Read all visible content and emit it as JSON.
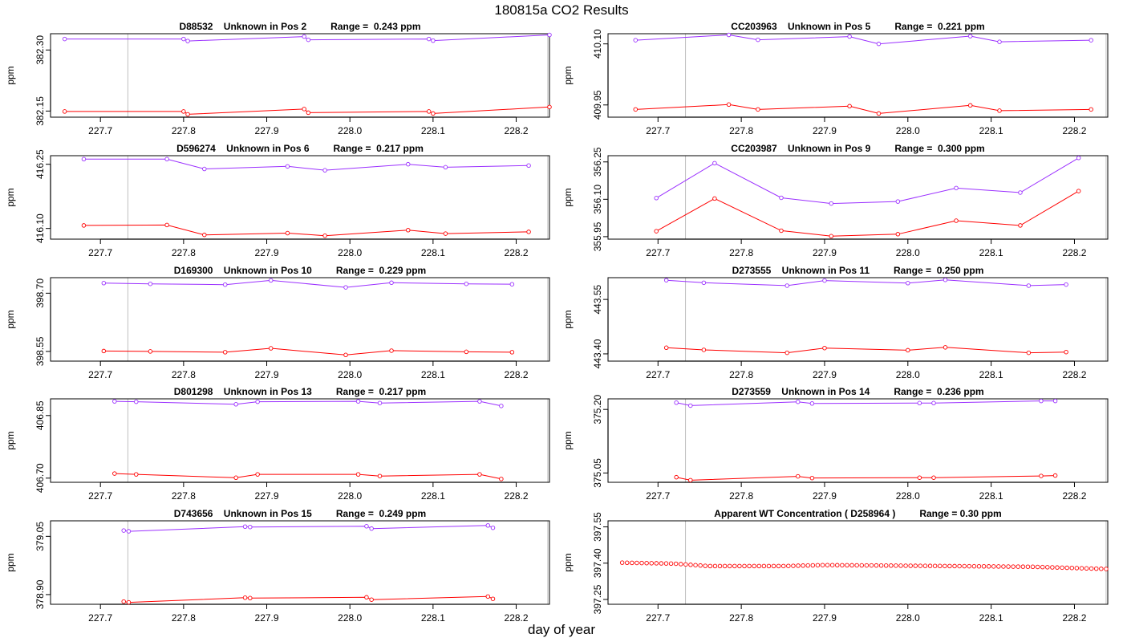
{
  "title": "180815a  CO2 Results",
  "xlabel": "day of year",
  "ylabel": "ppm",
  "colors": {
    "upper": "#9b30ff",
    "lower": "#ff0000",
    "vline": "#bebebe",
    "axis": "#000000"
  },
  "chart_data": [
    {
      "type": "line",
      "id": "D88532",
      "title": "D88532    Unknown in Pos 2         Range =  0.243 ppm",
      "xlim": [
        227.64,
        228.24
      ],
      "ylim": [
        382.135,
        382.34
      ],
      "xticks": [
        "227.7",
        "227.8",
        "227.9",
        "228.0",
        "228.1",
        "228.2"
      ],
      "yticks": [
        "382.15",
        "382.30"
      ],
      "vlines": [
        227.733,
        228.238
      ],
      "series": [
        {
          "name": "upper",
          "x": [
            227.657,
            227.8,
            227.805,
            227.945,
            227.95,
            228.095,
            228.1,
            228.24
          ],
          "y": [
            382.327,
            382.327,
            382.322,
            382.333,
            382.325,
            382.327,
            382.323,
            382.337
          ]
        },
        {
          "name": "lower",
          "x": [
            227.657,
            227.8,
            227.805,
            227.945,
            227.95,
            228.095,
            228.1,
            228.24
          ],
          "y": [
            382.149,
            382.149,
            382.142,
            382.155,
            382.146,
            382.149,
            382.144,
            382.16
          ]
        }
      ]
    },
    {
      "type": "line",
      "id": "CC203963",
      "title": "CC203963    Unknown in Pos 5         Range =  0.221 ppm",
      "xlim": [
        227.64,
        228.24
      ],
      "ylim": [
        409.92,
        410.125
      ],
      "xticks": [
        "227.7",
        "227.8",
        "227.9",
        "228.0",
        "228.1",
        "228.2"
      ],
      "yticks": [
        "409.95",
        "410.10"
      ],
      "vlines": [
        227.733,
        228.238
      ],
      "series": [
        {
          "name": "upper",
          "x": [
            227.673,
            227.785,
            227.82,
            227.93,
            227.965,
            228.075,
            228.11,
            228.22
          ],
          "y": [
            410.109,
            410.122,
            410.11,
            410.118,
            410.1,
            410.119,
            410.105,
            410.109
          ]
        },
        {
          "name": "lower",
          "x": [
            227.673,
            227.785,
            227.82,
            227.93,
            227.965,
            228.075,
            228.11,
            228.22
          ],
          "y": [
            409.939,
            409.951,
            409.939,
            409.947,
            409.929,
            409.949,
            409.936,
            409.939
          ]
        }
      ]
    },
    {
      "type": "line",
      "id": "D596274",
      "title": "D596274    Unknown in Pos 6         Range =  0.217 ppm",
      "xlim": [
        227.64,
        228.24
      ],
      "ylim": [
        416.075,
        416.27
      ],
      "xticks": [
        "227.7",
        "227.8",
        "227.9",
        "228.0",
        "228.1",
        "228.2"
      ],
      "yticks": [
        "416.10",
        "416.25"
      ],
      "vlines": [
        227.733,
        228.238
      ],
      "series": [
        {
          "name": "upper",
          "x": [
            227.68,
            227.78,
            227.825,
            227.925,
            227.97,
            228.07,
            228.115,
            228.215
          ],
          "y": [
            416.262,
            416.262,
            416.239,
            416.245,
            416.236,
            416.25,
            416.243,
            416.247
          ]
        },
        {
          "name": "lower",
          "x": [
            227.68,
            227.78,
            227.825,
            227.925,
            227.97,
            228.07,
            228.115,
            228.215
          ],
          "y": [
            416.107,
            416.108,
            416.085,
            416.089,
            416.083,
            416.096,
            416.088,
            416.092
          ]
        }
      ]
    },
    {
      "type": "line",
      "id": "CC203987",
      "title": "CC203987    Unknown in Pos 9         Range =  0.300 ppm",
      "xlim": [
        227.64,
        228.24
      ],
      "ylim": [
        355.94,
        356.275
      ],
      "xticks": [
        "227.7",
        "227.8",
        "227.9",
        "228.0",
        "228.1",
        "228.2"
      ],
      "yticks": [
        "355.95",
        "356.10",
        "356.25"
      ],
      "vlines": [
        227.733,
        228.238
      ],
      "series": [
        {
          "name": "upper",
          "x": [
            227.698,
            227.768,
            227.848,
            227.908,
            227.988,
            228.058,
            228.135,
            228.205
          ],
          "y": [
            356.105,
            356.245,
            356.106,
            356.083,
            356.091,
            356.145,
            356.127,
            356.266
          ]
        },
        {
          "name": "lower",
          "x": [
            227.698,
            227.768,
            227.848,
            227.908,
            227.988,
            228.058,
            228.135,
            228.205
          ],
          "y": [
            355.972,
            356.103,
            355.974,
            355.952,
            355.96,
            356.014,
            355.995,
            356.133
          ]
        }
      ]
    },
    {
      "type": "line",
      "id": "D169300",
      "title": "D169300    Unknown in Pos 10         Range =  0.229 ppm",
      "xlim": [
        227.64,
        228.24
      ],
      "ylim": [
        398.525,
        398.74
      ],
      "xticks": [
        "227.7",
        "227.8",
        "227.9",
        "228.0",
        "228.1",
        "228.2"
      ],
      "yticks": [
        "398.55",
        "398.70"
      ],
      "vlines": [
        227.733,
        228.238
      ],
      "series": [
        {
          "name": "upper",
          "x": [
            227.704,
            227.76,
            227.85,
            227.905,
            227.995,
            228.05,
            228.14,
            228.195
          ],
          "y": [
            398.726,
            398.724,
            398.722,
            398.733,
            398.715,
            398.727,
            398.724,
            398.723
          ]
        },
        {
          "name": "lower",
          "x": [
            227.704,
            227.76,
            227.85,
            227.905,
            227.995,
            228.05,
            228.14,
            228.195
          ],
          "y": [
            398.551,
            398.55,
            398.548,
            398.558,
            398.541,
            398.552,
            398.549,
            398.548
          ]
        }
      ]
    },
    {
      "type": "line",
      "id": "D273555",
      "title": "D273555    Unknown in Pos 11         Range =  0.250 ppm",
      "xlim": [
        227.64,
        228.24
      ],
      "ylim": [
        443.38,
        443.61
      ],
      "xticks": [
        "227.7",
        "227.8",
        "227.9",
        "228.0",
        "228.1",
        "228.2"
      ],
      "yticks": [
        "443.40",
        "443.55"
      ],
      "vlines": [
        227.733,
        228.238
      ],
      "series": [
        {
          "name": "upper",
          "x": [
            227.71,
            227.755,
            227.855,
            227.9,
            228.0,
            228.045,
            228.145,
            228.19
          ],
          "y": [
            443.603,
            443.596,
            443.588,
            443.602,
            443.595,
            443.604,
            443.588,
            443.591
          ]
        },
        {
          "name": "lower",
          "x": [
            227.71,
            227.755,
            227.855,
            227.9,
            228.0,
            228.045,
            228.145,
            228.19
          ],
          "y": [
            443.417,
            443.411,
            443.403,
            443.416,
            443.41,
            443.418,
            443.403,
            443.405
          ]
        }
      ]
    },
    {
      "type": "line",
      "id": "D801298",
      "title": "D801298    Unknown in Pos 13         Range =  0.217 ppm",
      "xlim": [
        227.64,
        228.24
      ],
      "ylim": [
        406.69,
        406.89
      ],
      "xticks": [
        "227.7",
        "227.8",
        "227.9",
        "228.0",
        "228.1",
        "228.2"
      ],
      "yticks": [
        "406.70",
        "406.85"
      ],
      "vlines": [
        227.733,
        228.238
      ],
      "series": [
        {
          "name": "upper",
          "x": [
            227.717,
            227.743,
            227.863,
            227.889,
            228.01,
            228.036,
            228.156,
            228.182
          ],
          "y": [
            406.884,
            406.883,
            406.877,
            406.883,
            406.884,
            406.88,
            406.884,
            406.873
          ]
        },
        {
          "name": "lower",
          "x": [
            227.717,
            227.743,
            227.863,
            227.889,
            228.01,
            228.036,
            228.156,
            228.182
          ],
          "y": [
            406.711,
            406.709,
            406.701,
            406.709,
            406.709,
            406.705,
            406.709,
            406.698
          ]
        }
      ]
    },
    {
      "type": "line",
      "id": "D273559",
      "title": "D273559    Unknown in Pos 14         Range =  0.236 ppm",
      "xlim": [
        227.64,
        228.24
      ],
      "ylim": [
        375.028,
        375.225
      ],
      "xticks": [
        "227.7",
        "227.8",
        "227.9",
        "228.0",
        "228.1",
        "228.2"
      ],
      "yticks": [
        "375.05",
        "375.20"
      ],
      "vlines": [
        227.733,
        228.238
      ],
      "series": [
        {
          "name": "upper",
          "x": [
            227.722,
            227.739,
            227.868,
            227.885,
            228.014,
            228.031,
            228.16,
            228.177
          ],
          "y": [
            375.216,
            375.209,
            375.218,
            375.214,
            375.215,
            375.215,
            375.22,
            375.22
          ]
        },
        {
          "name": "lower",
          "x": [
            227.722,
            227.739,
            227.868,
            227.885,
            228.014,
            228.031,
            228.16,
            228.177
          ],
          "y": [
            375.04,
            375.033,
            375.042,
            375.038,
            375.039,
            375.039,
            375.043,
            375.044
          ]
        }
      ]
    },
    {
      "type": "line",
      "id": "D743656",
      "title": "D743656    Unknown in Pos 15         Range =  0.249 ppm",
      "xlim": [
        227.64,
        228.24
      ],
      "ylim": [
        378.875,
        379.09
      ],
      "xticks": [
        "227.7",
        "227.8",
        "227.9",
        "228.0",
        "228.1",
        "228.2"
      ],
      "yticks": [
        "378.90",
        "379.05"
      ],
      "vlines": [
        227.733,
        228.238
      ],
      "series": [
        {
          "name": "upper",
          "x": [
            227.728,
            227.734,
            227.874,
            227.88,
            228.02,
            228.026,
            228.166,
            228.172
          ],
          "y": [
            379.065,
            379.063,
            379.075,
            379.074,
            379.076,
            379.07,
            379.078,
            379.072
          ]
        },
        {
          "name": "lower",
          "x": [
            227.728,
            227.734,
            227.874,
            227.88,
            228.02,
            228.026,
            228.166,
            228.172
          ],
          "y": [
            378.882,
            378.88,
            378.892,
            378.891,
            378.893,
            378.887,
            378.895,
            378.889
          ]
        }
      ]
    },
    {
      "type": "scatter",
      "id": "WT",
      "title": "Apparent WT Concentration ( D258964 )         Range = 0.30 ppm",
      "xlim": [
        227.64,
        228.24
      ],
      "ylim": [
        397.23,
        397.575
      ],
      "xticks": [
        "227.7",
        "227.8",
        "227.9",
        "228.0",
        "228.1",
        "228.2"
      ],
      "yticks": [
        "397.25",
        "397.40",
        "397.55"
      ],
      "vlines": [
        227.733,
        228.238
      ],
      "wt_points": {
        "x_start": 227.657,
        "x_end": 228.238,
        "count": 100,
        "y_knots": [
          [
            227.657,
            397.402
          ],
          [
            227.72,
            397.398
          ],
          [
            227.76,
            397.388
          ],
          [
            227.85,
            397.388
          ],
          [
            227.9,
            397.392
          ],
          [
            228.05,
            397.388
          ],
          [
            228.15,
            397.385
          ],
          [
            228.238,
            397.376
          ]
        ]
      }
    }
  ]
}
